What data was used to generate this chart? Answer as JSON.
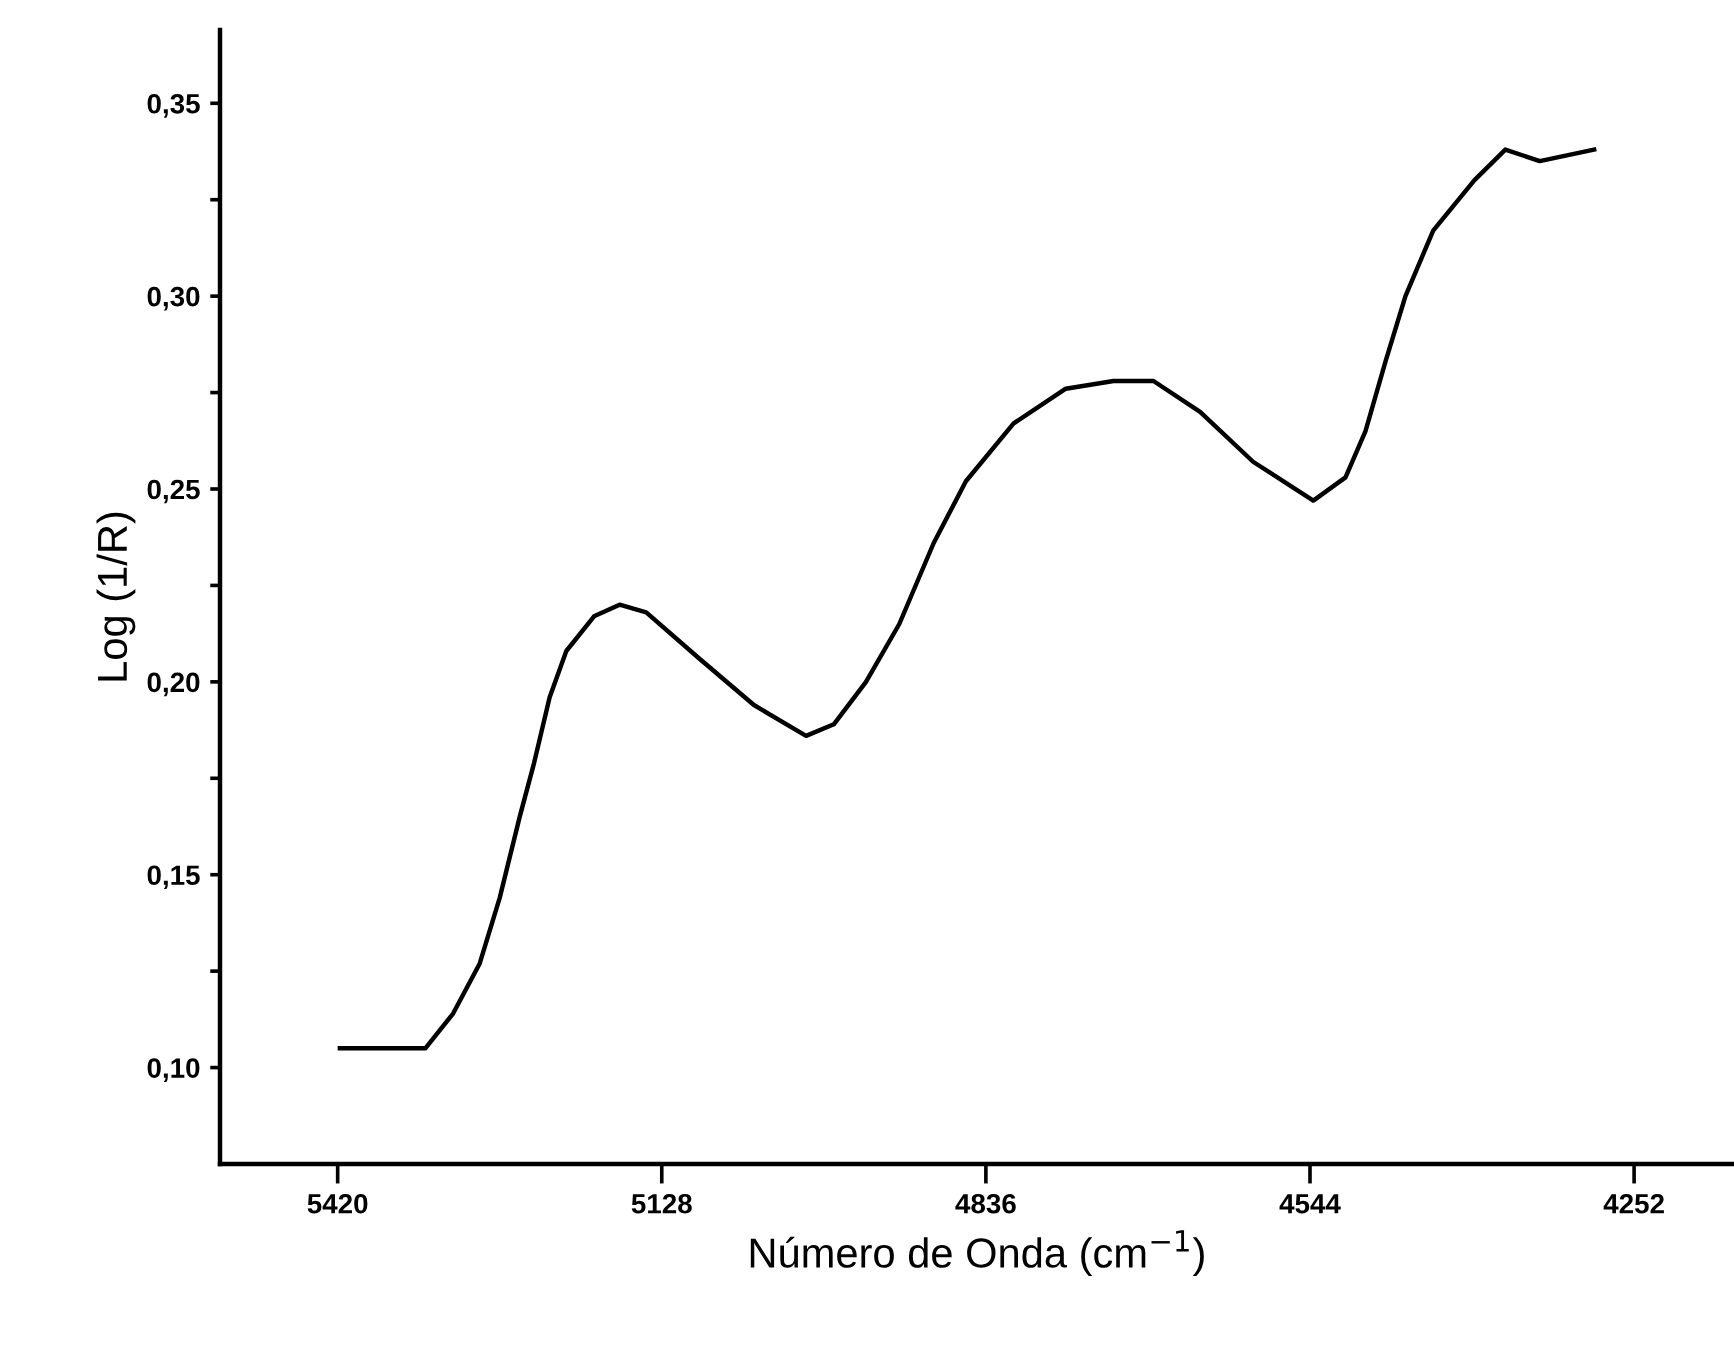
{
  "chart_data": {
    "type": "line",
    "xlabel": "Número de Onda (cm$^{−1}$)",
    "ylabel": "Log (1/R)",
    "x": [
      5418,
      5341,
      5316,
      5292,
      5274,
      5256,
      5243,
      5229,
      5214,
      5189,
      5166,
      5142,
      5094,
      5045,
      4998,
      4973,
      4944,
      4914,
      4883,
      4854,
      4811,
      4764,
      4721,
      4685,
      4643,
      4595,
      4541,
      4512,
      4494,
      4476,
      4458,
      4433,
      4396,
      4368,
      4337,
      4288
    ],
    "series": [
      {
        "color": "#000000",
        "values": [
          0.105,
          0.105,
          0.114,
          0.127,
          0.144,
          0.165,
          0.179,
          0.196,
          0.208,
          0.217,
          0.22,
          0.218,
          0.206,
          0.194,
          0.186,
          0.189,
          0.2,
          0.215,
          0.236,
          0.252,
          0.267,
          0.276,
          0.278,
          0.278,
          0.27,
          0.257,
          0.247,
          0.253,
          0.265,
          0.283,
          0.3,
          0.317,
          0.33,
          0.338,
          0.335,
          0.338
        ]
      }
    ],
    "xlim": [
      5526,
      4162
    ],
    "xticks": [
      5420,
      5128,
      4836,
      4544,
      4252
    ],
    "ylim": [
      0.075,
      0.369
    ],
    "yticks": [
      {
        "value": 0.1,
        "label": "0,10"
      },
      {
        "value": 0.125,
        "label": null
      },
      {
        "value": 0.15,
        "label": "0,15"
      },
      {
        "value": 0.175,
        "label": null
      },
      {
        "value": 0.2,
        "label": "0,20"
      },
      {
        "value": 0.225,
        "label": null
      },
      {
        "value": 0.25,
        "label": "0,25"
      },
      {
        "value": 0.275,
        "label": null
      },
      {
        "value": 0.3,
        "label": "0,30"
      },
      {
        "value": 0.325,
        "label": null
      },
      {
        "value": 0.35,
        "label": "0,35"
      }
    ],
    "grid": false,
    "legend": false,
    "marker": "none",
    "line_style": "solid"
  }
}
